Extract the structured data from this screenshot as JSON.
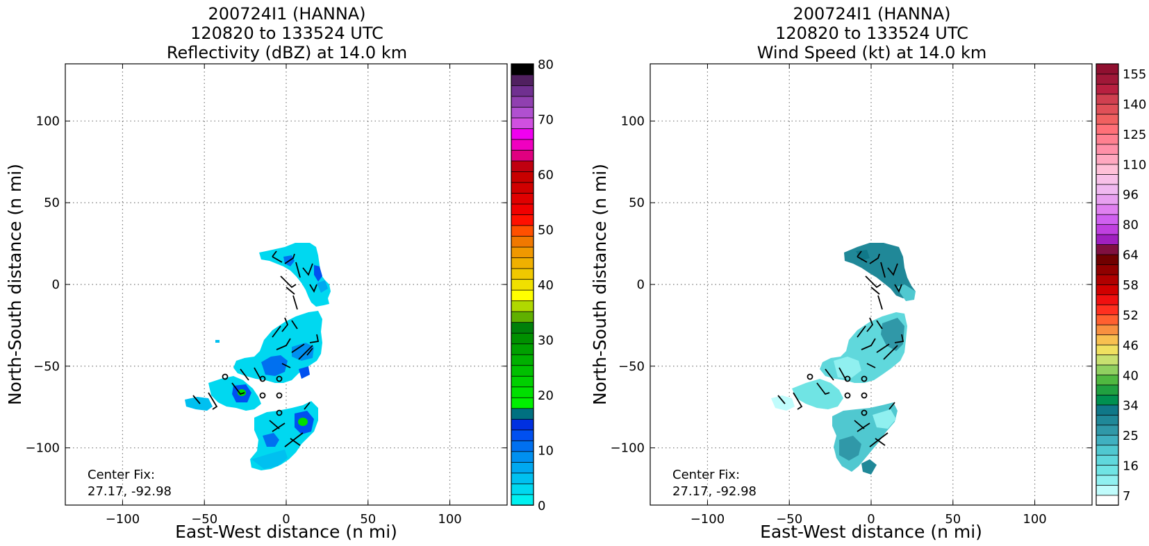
{
  "chart_data": [
    {
      "type": "heatmap",
      "title": [
        "200724I1 (HANNA)",
        "120820 to 133524 UTC",
        "Reflectivity (dBZ) at 14.0 km"
      ],
      "xlabel": "East-West distance (n mi)",
      "ylabel": "North-South distance (n mi)",
      "xlim": [
        -135,
        135
      ],
      "ylim": [
        -135,
        135
      ],
      "xticks": [
        "−100",
        "−50",
        "0",
        "50",
        "100"
      ],
      "xtick_values": [
        -100,
        -50,
        0,
        50,
        100
      ],
      "yticks": [
        "100",
        "50",
        "0",
        "−50",
        "−100"
      ],
      "ytick_values": [
        100,
        50,
        0,
        -50,
        -100
      ],
      "grid": true,
      "annotation": [
        "Center Fix:",
        "27.17, -92.98"
      ],
      "colorbar": {
        "min": 0,
        "max": 80,
        "levels": 32,
        "labels": [
          "80",
          "70",
          "60",
          "50",
          "40",
          "30",
          "20",
          "10",
          "0"
        ],
        "label_values": [
          80,
          70,
          60,
          50,
          40,
          30,
          20,
          10,
          0
        ],
        "colors": [
          "#00f0f0",
          "#00d8f0",
          "#00c0f0",
          "#00a8f0",
          "#0090f0",
          "#0070f0",
          "#0050f0",
          "#0030e0",
          "#007080",
          "#00f000",
          "#00e000",
          "#00d000",
          "#00c000",
          "#00b000",
          "#00a000",
          "#009000",
          "#00800a",
          "#60b000",
          "#b0d800",
          "#ffff00",
          "#f0e000",
          "#f0c800",
          "#f0b000",
          "#f09800",
          "#f07800",
          "#ff5000",
          "#ff1000",
          "#f00000",
          "#e00000",
          "#d00000",
          "#c80000",
          "#c00010",
          "#e00080",
          "#f000c0",
          "#f000f0",
          "#d050e0",
          "#b050d0",
          "#9040b0",
          "#703090",
          "#502060",
          "#000000"
        ]
      },
      "wind_speed_range_kt": null
    },
    {
      "type": "heatmap",
      "title": [
        "200724I1 (HANNA)",
        "120820 to 133524 UTC",
        "Wind Speed (kt) at 14.0 km"
      ],
      "xlabel": "East-West distance (n mi)",
      "ylabel": "North-South distance (n mi)",
      "xlim": [
        -135,
        135
      ],
      "ylim": [
        -135,
        135
      ],
      "xticks": [
        "−100",
        "−50",
        "0",
        "50",
        "100"
      ],
      "xtick_values": [
        -100,
        -50,
        0,
        50,
        100
      ],
      "yticks": [
        "100",
        "50",
        "0",
        "−50",
        "−100"
      ],
      "ytick_values": [
        100,
        50,
        0,
        -50,
        -100
      ],
      "grid": true,
      "annotation": [
        "Center Fix:",
        "27.17, -92.98"
      ],
      "colorbar": {
        "labels": [
          "155",
          "140",
          "125",
          "110",
          "96",
          "80",
          "64",
          "58",
          "52",
          "46",
          "40",
          "34",
          "25",
          "16",
          "7"
        ],
        "colors": [
          "#ffffff",
          "#c0fcfc",
          "#90f0f0",
          "#70e4e4",
          "#60d8dc",
          "#50c8d0",
          "#40b0c0",
          "#3098a8",
          "#208898",
          "#107888",
          "#009050",
          "#20a040",
          "#50b840",
          "#90d060",
          "#c8e070",
          "#f0e060",
          "#f8c050",
          "#f89040",
          "#ff6030",
          "#ff3020",
          "#f01010",
          "#d00000",
          "#b00000",
          "#900000",
          "#700000",
          "#801040",
          "#a020c0",
          "#c040e0",
          "#d060f0",
          "#e080f0",
          "#e8a0f0",
          "#f0b8f0",
          "#f8c0e8",
          "#ffc0d8",
          "#ffa8c0",
          "#ff90a8",
          "#ff8090",
          "#ff7078",
          "#f06060",
          "#e05058",
          "#d04050",
          "#b82040",
          "#a01838",
          "#901030"
        ]
      }
    }
  ]
}
